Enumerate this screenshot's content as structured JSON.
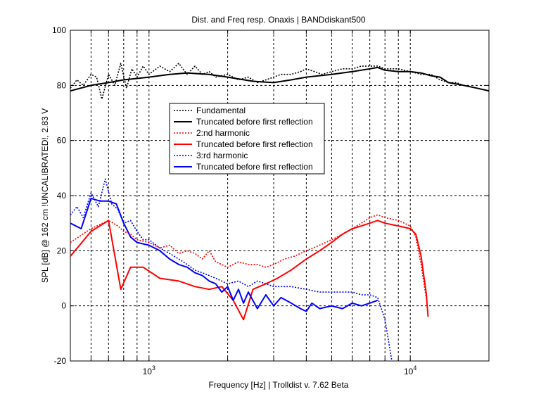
{
  "chart_data": {
    "type": "line",
    "title": "Dist. and Freq resp. Onaxis | BANDdiskant500",
    "xlabel": "Frequency [Hz] | Trolldist v. 7.62 Beta",
    "ylabel": "SPL [dB] @ 162 cm !UNCALIBRATED!, 2.83 V",
    "x_scale": "log",
    "xlim": [
      500,
      20000
    ],
    "ylim": [
      -20,
      100
    ],
    "y_ticks": [
      -20,
      0,
      20,
      40,
      60,
      80,
      100
    ],
    "x_major_ticks": [
      1000,
      10000
    ],
    "x_tick_labels": [
      {
        "base": "10",
        "exp": "3",
        "value": 1000
      },
      {
        "base": "10",
        "exp": "4",
        "value": 10000
      }
    ],
    "x_minor_grid": [
      600,
      700,
      800,
      900,
      2000,
      3000,
      4000,
      5000,
      6000,
      7000,
      8000,
      9000
    ],
    "grid": true,
    "legend_position": "upper-center",
    "series": [
      {
        "name": "Fundamental",
        "color": "#000000",
        "style": "dotted",
        "points": [
          [
            500,
            79
          ],
          [
            530,
            82
          ],
          [
            560,
            80
          ],
          [
            600,
            84
          ],
          [
            630,
            83
          ],
          [
            660,
            75
          ],
          [
            700,
            84
          ],
          [
            740,
            80
          ],
          [
            780,
            88
          ],
          [
            820,
            79
          ],
          [
            860,
            86
          ],
          [
            900,
            83
          ],
          [
            950,
            87
          ],
          [
            1000,
            84
          ],
          [
            1100,
            87
          ],
          [
            1200,
            85
          ],
          [
            1300,
            88
          ],
          [
            1400,
            84
          ],
          [
            1500,
            87
          ],
          [
            1600,
            84
          ],
          [
            1700,
            85
          ],
          [
            1800,
            83
          ],
          [
            2000,
            84
          ],
          [
            2200,
            82
          ],
          [
            2400,
            83
          ],
          [
            2600,
            81
          ],
          [
            2800,
            82
          ],
          [
            3000,
            83
          ],
          [
            3200,
            84
          ],
          [
            3500,
            84
          ],
          [
            3800,
            85
          ],
          [
            4000,
            86
          ],
          [
            4300,
            85
          ],
          [
            4600,
            84
          ],
          [
            5000,
            85
          ],
          [
            5500,
            86
          ],
          [
            6000,
            86
          ],
          [
            6500,
            87
          ],
          [
            7000,
            87
          ],
          [
            7500,
            87
          ],
          [
            8000,
            86
          ],
          [
            9000,
            86
          ],
          [
            10000,
            85
          ],
          [
            11000,
            84
          ],
          [
            12000,
            84
          ],
          [
            13000,
            82
          ],
          [
            14000,
            81
          ],
          [
            15000,
            81
          ],
          [
            16000,
            80
          ],
          [
            18000,
            79
          ],
          [
            20000,
            78
          ]
        ]
      },
      {
        "name": "Truncated before first reflection",
        "color": "#000000",
        "style": "solid",
        "points": [
          [
            500,
            78
          ],
          [
            600,
            80
          ],
          [
            700,
            81
          ],
          [
            800,
            82
          ],
          [
            900,
            82.5
          ],
          [
            1000,
            83
          ],
          [
            1200,
            84
          ],
          [
            1400,
            84.5
          ],
          [
            1700,
            84
          ],
          [
            2000,
            83
          ],
          [
            2500,
            81.5
          ],
          [
            3000,
            81
          ],
          [
            3500,
            82
          ],
          [
            4000,
            83
          ],
          [
            5000,
            84
          ],
          [
            6000,
            85
          ],
          [
            7000,
            86
          ],
          [
            7500,
            86.5
          ],
          [
            8000,
            85.5
          ],
          [
            9000,
            85
          ],
          [
            10000,
            85
          ],
          [
            11000,
            84.5
          ],
          [
            12000,
            83.5
          ],
          [
            13000,
            83
          ],
          [
            14000,
            81
          ],
          [
            15000,
            80.5
          ],
          [
            16000,
            80
          ],
          [
            18000,
            79
          ],
          [
            20000,
            78
          ]
        ]
      },
      {
        "name": "2:nd harmonic",
        "color": "#ff0000",
        "style": "dotted",
        "points": [
          [
            500,
            23
          ],
          [
            600,
            28
          ],
          [
            700,
            31
          ],
          [
            760,
            29
          ],
          [
            800,
            27
          ],
          [
            850,
            26
          ],
          [
            900,
            24
          ],
          [
            1000,
            23
          ],
          [
            1100,
            21
          ],
          [
            1200,
            22
          ],
          [
            1300,
            19
          ],
          [
            1400,
            20
          ],
          [
            1500,
            19
          ],
          [
            1600,
            17
          ],
          [
            1700,
            20
          ],
          [
            1800,
            16
          ],
          [
            2000,
            14
          ],
          [
            2200,
            16
          ],
          [
            2400,
            15
          ],
          [
            2600,
            15
          ],
          [
            2800,
            14
          ],
          [
            3000,
            15
          ],
          [
            3300,
            17
          ],
          [
            3600,
            18
          ],
          [
            4000,
            20
          ],
          [
            4500,
            22
          ],
          [
            5000,
            24
          ],
          [
            5500,
            26
          ],
          [
            6000,
            28
          ],
          [
            6500,
            30
          ],
          [
            7000,
            32
          ],
          [
            7500,
            33
          ],
          [
            8000,
            32
          ],
          [
            9000,
            31
          ],
          [
            10000,
            29
          ],
          [
            10500,
            25
          ],
          [
            11000,
            15
          ],
          [
            11500,
            3
          ]
        ]
      },
      {
        "name": "Truncated before first reflection",
        "color": "#ff0000",
        "style": "solid",
        "points": [
          [
            500,
            18
          ],
          [
            600,
            27
          ],
          [
            700,
            31
          ],
          [
            780,
            6
          ],
          [
            850,
            14
          ],
          [
            950,
            14
          ],
          [
            1100,
            10
          ],
          [
            1300,
            9
          ],
          [
            1500,
            7
          ],
          [
            1700,
            6
          ],
          [
            1900,
            7
          ],
          [
            2100,
            2
          ],
          [
            2300,
            -5
          ],
          [
            2500,
            6
          ],
          [
            2800,
            8
          ],
          [
            3100,
            10
          ],
          [
            3500,
            13
          ],
          [
            4000,
            17
          ],
          [
            4500,
            20
          ],
          [
            5000,
            23
          ],
          [
            5500,
            26
          ],
          [
            6000,
            28
          ],
          [
            6500,
            29
          ],
          [
            7000,
            30
          ],
          [
            7500,
            31
          ],
          [
            8000,
            30
          ],
          [
            9000,
            29
          ],
          [
            10000,
            28
          ],
          [
            10500,
            26
          ],
          [
            11000,
            18
          ],
          [
            11300,
            10
          ],
          [
            11500,
            5
          ],
          [
            11700,
            -4
          ]
        ]
      },
      {
        "name": "3:rd harmonic",
        "color": "#0000ff",
        "style": "dotted",
        "points": [
          [
            500,
            33
          ],
          [
            530,
            36
          ],
          [
            560,
            32
          ],
          [
            600,
            41
          ],
          [
            640,
            36
          ],
          [
            680,
            46
          ],
          [
            720,
            37
          ],
          [
            760,
            35
          ],
          [
            800,
            30
          ],
          [
            850,
            31
          ],
          [
            900,
            27
          ],
          [
            950,
            24
          ],
          [
            1000,
            24
          ],
          [
            1100,
            21
          ],
          [
            1200,
            19
          ],
          [
            1300,
            17
          ],
          [
            1400,
            15
          ],
          [
            1500,
            13
          ],
          [
            1600,
            12
          ],
          [
            1700,
            11
          ],
          [
            1800,
            10
          ],
          [
            2000,
            8
          ],
          [
            2200,
            9
          ],
          [
            2400,
            7
          ],
          [
            2600,
            9
          ],
          [
            2800,
            8
          ],
          [
            3000,
            7
          ],
          [
            3500,
            7
          ],
          [
            4000,
            6
          ],
          [
            4500,
            5
          ],
          [
            5000,
            5
          ],
          [
            5500,
            5
          ],
          [
            6000,
            5
          ],
          [
            6500,
            4
          ],
          [
            7000,
            4
          ],
          [
            7500,
            3
          ],
          [
            8000,
            -5
          ],
          [
            8500,
            -20
          ]
        ]
      },
      {
        "name": "Truncated before first reflection",
        "color": "#0000ff",
        "style": "solid",
        "points": [
          [
            500,
            30
          ],
          [
            550,
            28
          ],
          [
            600,
            39
          ],
          [
            650,
            38
          ],
          [
            700,
            38
          ],
          [
            750,
            37
          ],
          [
            800,
            30
          ],
          [
            850,
            25
          ],
          [
            900,
            23
          ],
          [
            1000,
            22
          ],
          [
            1100,
            20
          ],
          [
            1200,
            17
          ],
          [
            1300,
            15
          ],
          [
            1400,
            14
          ],
          [
            1500,
            12
          ],
          [
            1600,
            11
          ],
          [
            1700,
            9
          ],
          [
            1800,
            8
          ],
          [
            1900,
            5
          ],
          [
            2000,
            7
          ],
          [
            2100,
            2
          ],
          [
            2200,
            6
          ],
          [
            2300,
            1
          ],
          [
            2400,
            5
          ],
          [
            2600,
            -1
          ],
          [
            2800,
            4
          ],
          [
            3000,
            0
          ],
          [
            3200,
            3
          ],
          [
            3500,
            1
          ],
          [
            3800,
            -1
          ],
          [
            4000,
            -2
          ],
          [
            4200,
            1
          ],
          [
            4500,
            -1
          ],
          [
            5000,
            0
          ],
          [
            5500,
            -1
          ],
          [
            6000,
            1
          ],
          [
            6500,
            0
          ],
          [
            7000,
            1
          ],
          [
            7500,
            2
          ]
        ]
      }
    ]
  }
}
